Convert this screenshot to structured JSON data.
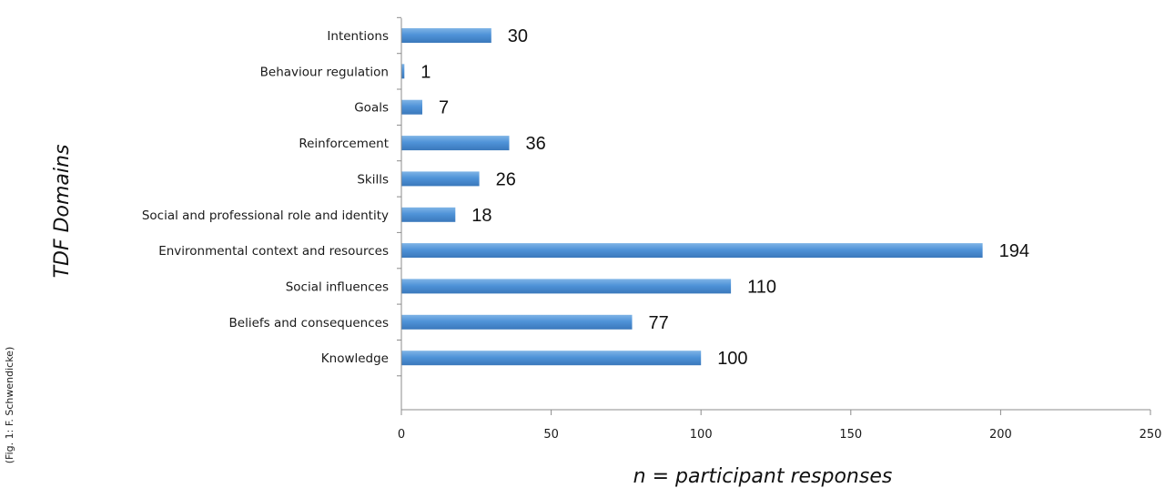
{
  "chart_data": {
    "type": "bar",
    "orientation": "horizontal",
    "categories": [
      "Intentions",
      "Behaviour regulation",
      "Goals",
      "Reinforcement",
      "Skills",
      "Social and professional role and identity",
      "Environmental context and resources",
      "Social influences",
      "Beliefs and consequences",
      "Knowledge"
    ],
    "values": [
      30,
      1,
      7,
      36,
      26,
      18,
      194,
      110,
      77,
      100
    ],
    "xlabel": "n = participant responses",
    "ylabel": "TDF Domains",
    "xlim": [
      0,
      250
    ],
    "xticks": [
      "0",
      "50",
      "100",
      "150",
      "200",
      "250"
    ],
    "grid": false,
    "legend": "none",
    "bar_color": "#4f93d8"
  },
  "credit": "(Fig. 1: F. Schwendicke)"
}
